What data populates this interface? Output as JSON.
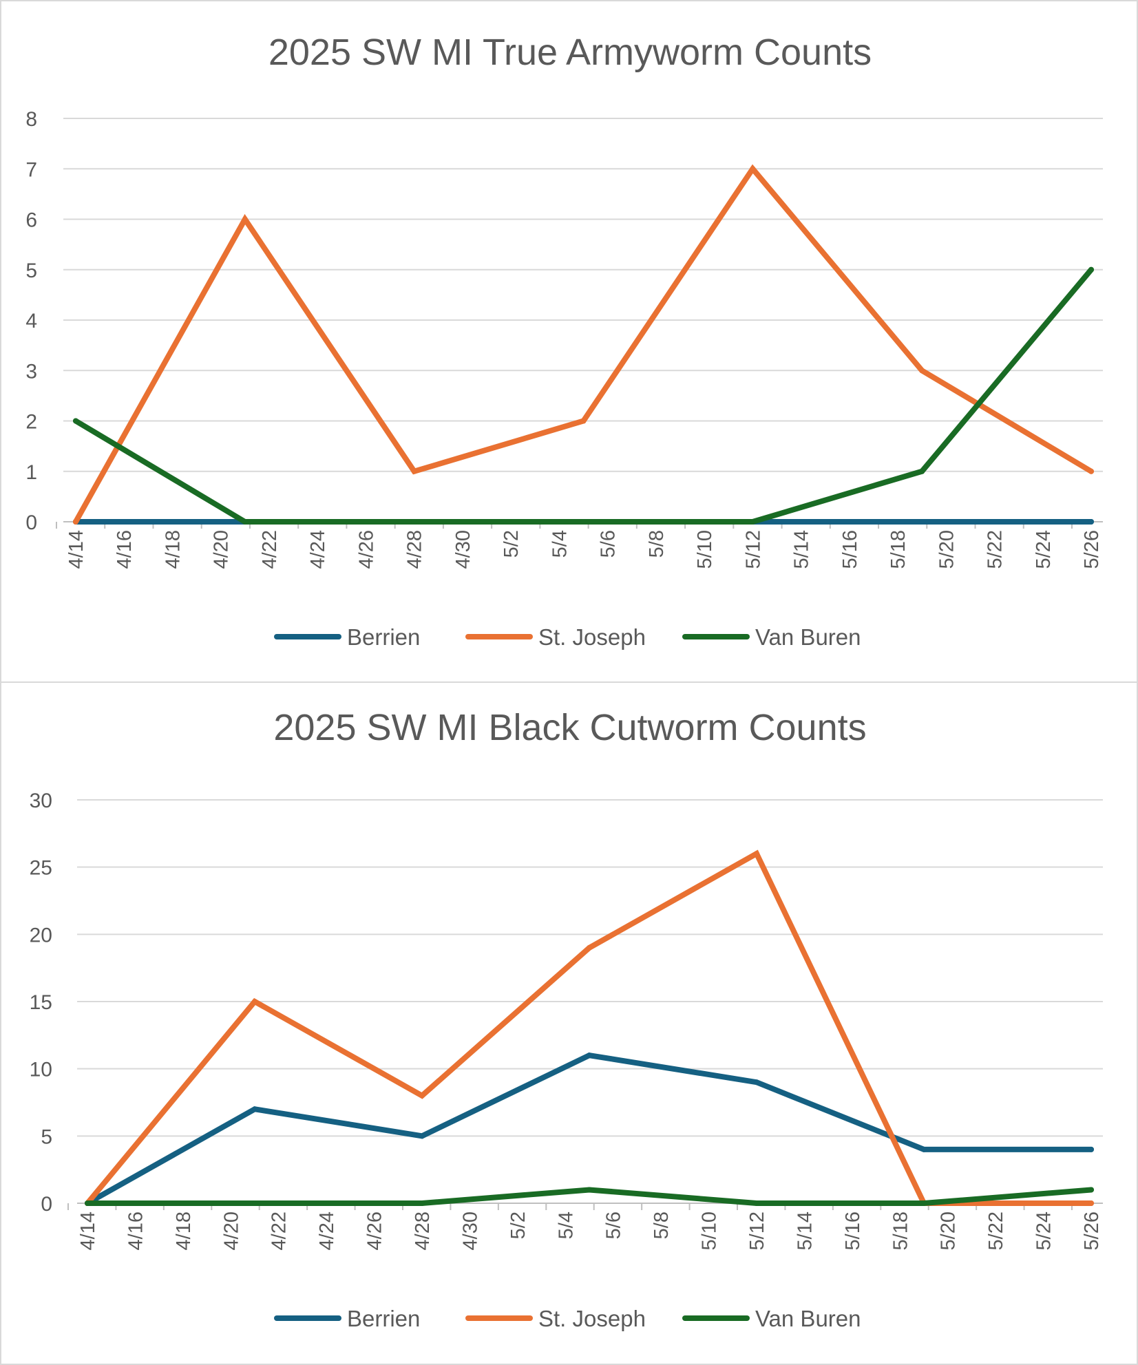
{
  "chart_data": [
    {
      "type": "line",
      "title": "2025 SW MI True Armyworm Counts",
      "xlabel": "",
      "ylabel": "",
      "ylim": [
        0,
        8
      ],
      "yticks": [
        0,
        1,
        2,
        3,
        4,
        5,
        6,
        7,
        8
      ],
      "x_tick_labels": [
        "4/14",
        "4/16",
        "4/18",
        "4/20",
        "4/22",
        "4/24",
        "4/26",
        "4/28",
        "4/30",
        "5/2",
        "5/4",
        "5/6",
        "5/8",
        "5/10",
        "5/12",
        "5/14",
        "5/16",
        "5/18",
        "5/20",
        "5/22",
        "5/24",
        "5/26"
      ],
      "x_dates": [
        "4/14",
        "4/21",
        "4/28",
        "5/5",
        "5/12",
        "5/19",
        "5/26"
      ],
      "legend_position": "bottom",
      "grid": true,
      "series": [
        {
          "name": "Berrien",
          "color": "#156082",
          "values": [
            0,
            0,
            0,
            0,
            0,
            0,
            0
          ]
        },
        {
          "name": "St. Joseph",
          "color": "#E97132",
          "values": [
            0,
            6,
            1,
            2,
            7,
            3,
            1
          ]
        },
        {
          "name": "Van Buren",
          "color": "#196B24",
          "values": [
            2,
            0,
            0,
            0,
            0,
            1,
            5
          ]
        }
      ]
    },
    {
      "type": "line",
      "title": "2025 SW MI Black Cutworm Counts",
      "xlabel": "",
      "ylabel": "",
      "ylim": [
        0,
        30
      ],
      "yticks": [
        0,
        5,
        10,
        15,
        20,
        25,
        30
      ],
      "x_tick_labels": [
        "4/14",
        "4/16",
        "4/18",
        "4/20",
        "4/22",
        "4/24",
        "4/26",
        "4/28",
        "4/30",
        "5/2",
        "5/4",
        "5/6",
        "5/8",
        "5/10",
        "5/12",
        "5/14",
        "5/16",
        "5/18",
        "5/20",
        "5/22",
        "5/24",
        "5/26"
      ],
      "x_dates": [
        "4/14",
        "4/21",
        "4/28",
        "5/5",
        "5/12",
        "5/19",
        "5/26"
      ],
      "legend_position": "bottom",
      "grid": true,
      "series": [
        {
          "name": "Berrien",
          "color": "#156082",
          "values": [
            0,
            7,
            5,
            11,
            9,
            4,
            4
          ]
        },
        {
          "name": "St. Joseph",
          "color": "#E97132",
          "values": [
            0,
            15,
            8,
            19,
            26,
            0,
            0
          ]
        },
        {
          "name": "Van Buren",
          "color": "#196B24",
          "values": [
            0,
            0,
            0,
            1,
            0,
            0,
            1
          ]
        }
      ]
    }
  ]
}
